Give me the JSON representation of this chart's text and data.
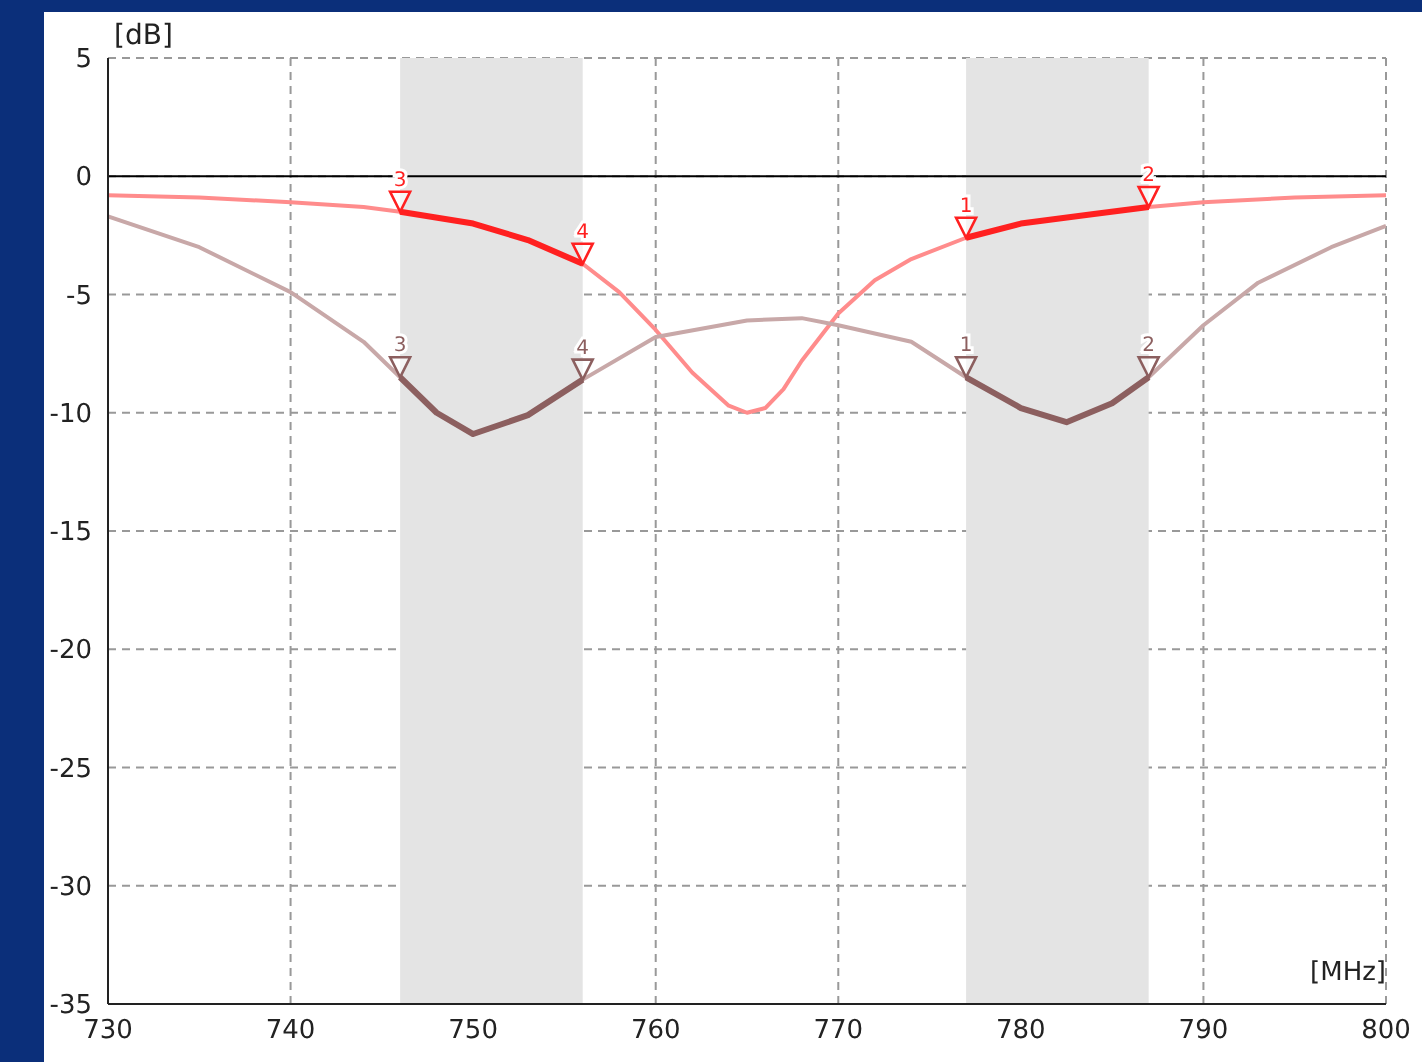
{
  "chart_data": {
    "type": "line",
    "xlabel": "[MHz]",
    "ylabel": "[dB]",
    "xlim": [
      730,
      800
    ],
    "xticks": [
      730,
      740,
      750,
      760,
      770,
      780,
      790,
      800
    ],
    "ylim": [
      -35,
      5
    ],
    "yticks": [
      5,
      0,
      -5,
      -10,
      -15,
      -20,
      -25,
      -30,
      -35
    ],
    "grid": true,
    "line_style": "solid",
    "marker": "none",
    "series": [
      {
        "color": "#ff8c8c",
        "x": [
          730,
          735,
          740,
          744,
          746,
          750,
          753,
          756,
          758,
          760,
          762,
          764,
          765,
          766,
          767,
          768,
          770,
          772,
          774,
          777,
          780,
          784,
          787,
          790,
          795,
          800
        ],
        "values": [
          -0.8,
          -0.9,
          -1.1,
          -1.3,
          -1.5,
          -2.0,
          -2.7,
          -3.7,
          -4.9,
          -6.5,
          -8.3,
          -9.7,
          -10.0,
          -9.8,
          -9.0,
          -7.8,
          -5.8,
          -4.4,
          -3.5,
          -2.6,
          -2.0,
          -1.6,
          -1.3,
          -1.1,
          -0.9,
          -0.8
        ]
      },
      {
        "color": "#c8a8a8",
        "x": [
          730,
          735,
          740,
          744,
          746,
          748,
          750,
          753,
          756,
          760,
          765,
          768,
          770,
          774,
          777,
          780,
          782.5,
          785,
          787,
          790,
          793,
          797,
          800
        ],
        "values": [
          -1.7,
          -3.0,
          -4.9,
          -7.0,
          -8.5,
          -10.0,
          -10.9,
          -10.1,
          -8.6,
          -6.8,
          -6.1,
          -6.0,
          -6.3,
          -7.0,
          -8.5,
          -9.8,
          -10.4,
          -9.6,
          -8.5,
          -6.3,
          -4.5,
          -3.0,
          -2.1
        ]
      },
      {
        "color": "#ff2020",
        "x": [
          746,
          750,
          753,
          756
        ],
        "values": [
          -1.5,
          -2.0,
          -2.7,
          -3.7
        ]
      },
      {
        "color": "#ff2020",
        "x": [
          777,
          780,
          784,
          787
        ],
        "values": [
          -2.6,
          -2.0,
          -1.6,
          -1.3
        ]
      },
      {
        "color": "#8c5f5f",
        "x": [
          746,
          748,
          750,
          753,
          756
        ],
        "values": [
          -8.5,
          -10.0,
          -10.9,
          -10.1,
          -8.6
        ]
      },
      {
        "color": "#8c5f5f",
        "x": [
          777,
          780,
          782.5,
          785,
          787
        ],
        "values": [
          -8.5,
          -9.8,
          -10.4,
          -9.6,
          -8.5
        ]
      }
    ],
    "bands": [
      {
        "axis": "x",
        "from": 746,
        "to": 756,
        "color": "#e4e4e4"
      },
      {
        "axis": "x",
        "from": 777,
        "to": 787,
        "color": "#e4e4e4"
      }
    ],
    "ref_lines": [
      {
        "axis": "y",
        "value": 0,
        "color": "#000000"
      }
    ],
    "annotations": [
      {
        "text": "3",
        "x": 746,
        "y": -1.5
      },
      {
        "text": "4",
        "x": 756,
        "y": -3.7
      },
      {
        "text": "1",
        "x": 777,
        "y": -2.6
      },
      {
        "text": "2",
        "x": 787,
        "y": -1.3
      },
      {
        "text": "3",
        "x": 746,
        "y": -8.5
      },
      {
        "text": "4",
        "x": 756,
        "y": -8.6
      },
      {
        "text": "1",
        "x": 777,
        "y": -8.5
      },
      {
        "text": "2",
        "x": 787,
        "y": -8.5
      }
    ]
  }
}
